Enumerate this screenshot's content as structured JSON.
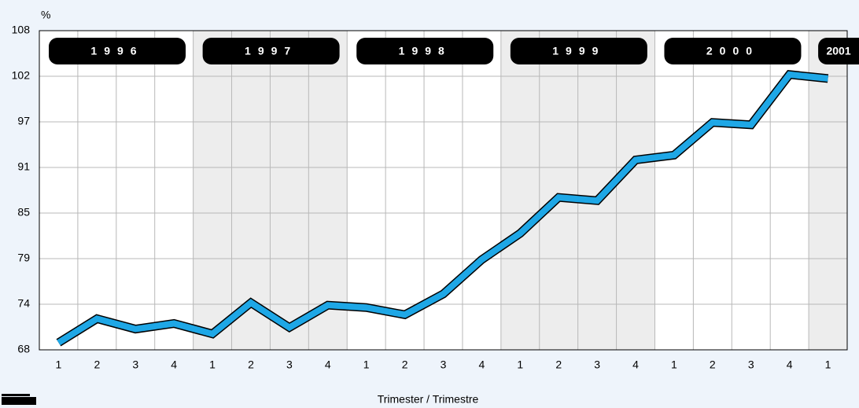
{
  "chart_data": {
    "type": "line",
    "y_unit": "%",
    "x_label": "Trimester / Trimestre",
    "years": [
      "1996",
      "1997",
      "1998",
      "1999",
      "2000",
      "2001"
    ],
    "categories": [
      "1",
      "2",
      "3",
      "4",
      "1",
      "2",
      "3",
      "4",
      "1",
      "2",
      "3",
      "4",
      "1",
      "2",
      "3",
      "4",
      "1",
      "2",
      "3",
      "4",
      "1"
    ],
    "series": [
      {
        "color": "#1ea7e6",
        "values": [
          68.9,
          71.9,
          70.6,
          71.3,
          70.0,
          73.9,
          70.8,
          73.6,
          73.3,
          72.4,
          75.0,
          79.3,
          82.6,
          87.1,
          86.7,
          91.8,
          92.4,
          96.5,
          96.2,
          102.5,
          102.0
        ]
      }
    ],
    "ylim": [
      68,
      108
    ],
    "yticks": [
      68,
      {
        "value": 73.714,
        "label": "74"
      },
      {
        "value": 79.429,
        "label": "79"
      },
      {
        "value": 85.143,
        "label": "85"
      },
      {
        "value": 90.857,
        "label": "91"
      },
      {
        "value": 96.571,
        "label": "97"
      },
      {
        "value": 102.286,
        "label": "102"
      },
      108
    ],
    "grid": true
  }
}
